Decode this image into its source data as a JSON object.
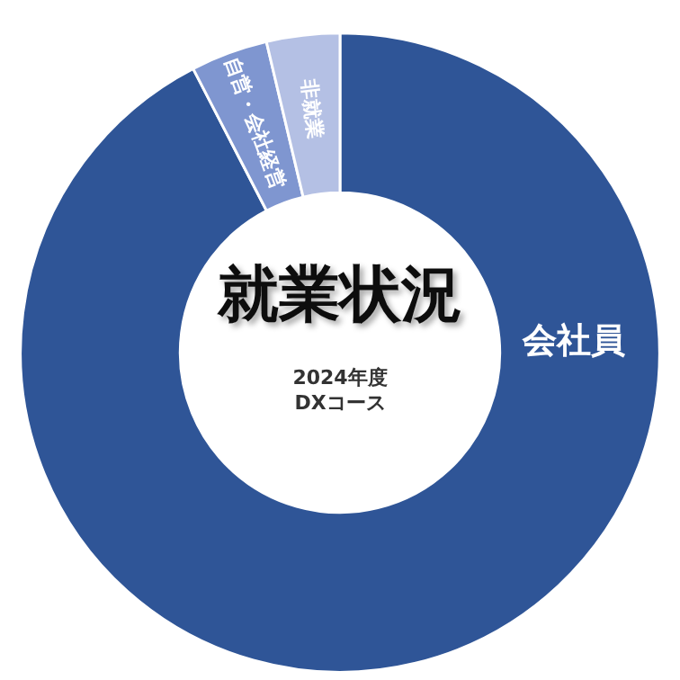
{
  "chart_data": {
    "type": "donut",
    "title": "就業状況",
    "subtitle": "2024年度\nDXコース",
    "categories": [
      "会社員",
      "自営・会社経営",
      "非就業"
    ],
    "values": [
      92.4,
      3.9,
      3.7
    ],
    "colors": [
      "#2f5597",
      "#7f96d0",
      "#b4c0e4"
    ],
    "legend": false
  }
}
